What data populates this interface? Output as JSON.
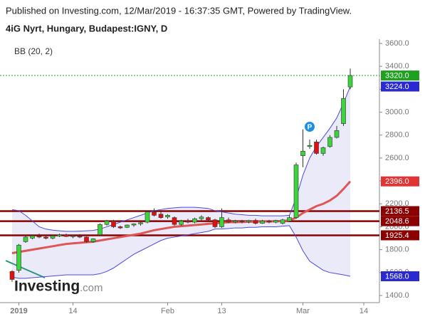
{
  "header": {
    "published": "Published on Investing.com, 12/Mar/2019 - 16:37:35 GMT, Powered by TradingView.",
    "symbol": "4iG Nyrt, Hungary, Budapest:IGNY, D",
    "indicator": "BB (20, 2)"
  },
  "logo": [
    "Investing",
    ".com"
  ],
  "chart_data": {
    "type": "candlestick",
    "categories": [
      null,
      "2019",
      null,
      null,
      null,
      null,
      null,
      null,
      null,
      "14",
      null,
      null,
      null,
      null,
      null,
      null,
      null,
      null,
      null,
      null,
      null,
      null,
      null,
      "Feb",
      null,
      null,
      null,
      null,
      null,
      null,
      null,
      "13",
      null,
      null,
      null,
      null,
      null,
      null,
      null,
      null,
      null,
      null,
      null,
      "Mar",
      null,
      null,
      null,
      null,
      null,
      null,
      null,
      null,
      "14"
    ],
    "open": [
      1610,
      1620,
      1870,
      1900,
      1920,
      1910,
      1900,
      1920,
      1930,
      1915,
      1920,
      1910,
      1870,
      1930,
      2020,
      2050,
      2000,
      1995,
      2015,
      2025,
      2040,
      2130,
      2110,
      2085,
      2080,
      2020,
      2050,
      2040,
      2070,
      2080,
      2060,
      2000,
      2060,
      2040,
      2050,
      2045,
      2055,
      2030,
      2050,
      2040,
      2030,
      2050,
      2080,
      2620,
      2700,
      2740,
      2640,
      2700,
      2780,
      2900,
      3220,
      null,
      null
    ],
    "high": [
      1620,
      1850,
      1920,
      1930,
      1940,
      1930,
      1930,
      1940,
      1940,
      1930,
      1935,
      1915,
      1900,
      2030,
      2060,
      2060,
      2010,
      2020,
      2030,
      2040,
      2140,
      2160,
      2130,
      2110,
      2090,
      2060,
      2070,
      2080,
      2100,
      2090,
      2070,
      2160,
      2080,
      2060,
      2060,
      2060,
      2070,
      2060,
      2060,
      2060,
      2070,
      2100,
      2560,
      2850,
      2760,
      2760,
      2700,
      2800,
      2880,
      3200,
      3380,
      null,
      null
    ],
    "low": [
      1520,
      1600,
      1860,
      1890,
      1900,
      1890,
      1890,
      1910,
      1910,
      1900,
      1900,
      1860,
      1860,
      1920,
      2010,
      1990,
      1980,
      1990,
      2000,
      2010,
      2030,
      2090,
      2070,
      2070,
      2010,
      2010,
      2030,
      2030,
      2050,
      2050,
      1990,
      1990,
      2030,
      2030,
      2030,
      2030,
      2020,
      2025,
      2030,
      2030,
      2020,
      2040,
      2070,
      2520,
      2680,
      2630,
      2620,
      2690,
      2770,
      2880,
      3200,
      null,
      null
    ],
    "close": [
      1540,
      1840,
      1910,
      1920,
      1910,
      1900,
      1920,
      1930,
      1915,
      1920,
      1910,
      1870,
      1895,
      2020,
      2050,
      2000,
      1990,
      2015,
      2025,
      2035,
      2130,
      2100,
      2080,
      2100,
      2020,
      2050,
      2040,
      2070,
      2085,
      2060,
      2000,
      2080,
      2040,
      2050,
      2045,
      2055,
      2030,
      2050,
      2040,
      2055,
      2060,
      2080,
      2540,
      2660,
      2710,
      2640,
      2690,
      2780,
      2840,
      3120,
      3320,
      null,
      null
    ],
    "up_color": "#3bd43b",
    "down_color": "#e01010",
    "bands": [
      {
        "name": "upper",
        "color": "#4a4ae0",
        "last_value_label": "3224.0",
        "values": [
          2150,
          2140,
          2100,
          2050,
          2000,
          1980,
          1970,
          1965,
          1960,
          1960,
          1962,
          1965,
          1968,
          1980,
          2000,
          2020,
          2040,
          2060,
          2080,
          2100,
          2120,
          2140,
          2150,
          2160,
          2165,
          2170,
          2170,
          2170,
          2165,
          2160,
          2140,
          2130,
          2120,
          2110,
          2105,
          2100,
          2100,
          2095,
          2095,
          2095,
          2095,
          2100,
          2250,
          2450,
          2600,
          2700,
          2780,
          2860,
          2950,
          3080,
          3224,
          null,
          null
        ]
      },
      {
        "name": "middle",
        "color": "#e05555",
        "last_value_label": "2396.0",
        "values": [
          1770,
          1780,
          1790,
          1800,
          1810,
          1820,
          1830,
          1840,
          1850,
          1855,
          1860,
          1865,
          1870,
          1880,
          1890,
          1900,
          1910,
          1920,
          1930,
          1940,
          1955,
          1970,
          1980,
          1990,
          2000,
          2005,
          2010,
          2015,
          2020,
          2025,
          2030,
          2035,
          2040,
          2040,
          2042,
          2044,
          2045,
          2046,
          2047,
          2048,
          2050,
          2055,
          2080,
          2120,
          2150,
          2180,
          2200,
          2230,
          2270,
          2330,
          2396,
          null,
          null
        ]
      },
      {
        "name": "lower",
        "color": "#4a4ae0",
        "last_value_label": "1568.0",
        "values": [
          1560,
          1550,
          1550,
          1555,
          1560,
          1565,
          1570,
          1575,
          1580,
          1580,
          1580,
          1580,
          1580,
          1590,
          1610,
          1640,
          1680,
          1720,
          1760,
          1790,
          1820,
          1850,
          1880,
          1900,
          1910,
          1920,
          1930,
          1940,
          1950,
          1960,
          1980,
          1980,
          1985,
          1990,
          1990,
          1995,
          1995,
          2000,
          2000,
          2000,
          2005,
          2010,
          1910,
          1790,
          1700,
          1660,
          1620,
          1600,
          1590,
          1580,
          1568,
          null,
          null
        ]
      }
    ],
    "band_fill": "rgba(140,140,215,0.18)",
    "box_colors": {
      "upper": "#2a2ad0",
      "middle": "#e03535",
      "lower": "#2a2ad0"
    },
    "last_price": {
      "value": 3320,
      "label": "3320.0",
      "color": "#1fa01f"
    },
    "levels": [
      2136.5,
      2048.6,
      1925.4
    ],
    "level_color": "#8b0000",
    "annotations": [
      {
        "text": "P",
        "color": "#1e90e0"
      }
    ],
    "ylim": [
      1400,
      3600
    ],
    "yticks": [
      {
        "value": 1400,
        "label": "1400.0"
      },
      {
        "value": 1600,
        "label": "1600.0"
      },
      {
        "value": 1800,
        "label": "1800.0"
      },
      {
        "value": 2000,
        "label": "2000.0"
      },
      {
        "value": 2200,
        "label": "2200.0"
      },
      {
        "value": 2400,
        "label": "2400.0"
      },
      {
        "value": 2600,
        "label": "2600.0"
      },
      {
        "value": 2800,
        "label": "2800.0"
      },
      {
        "value": 3000,
        "label": "3000.0"
      },
      {
        "value": 3200,
        "label": "3200.0"
      },
      {
        "value": 3400,
        "label": "3400.0"
      },
      {
        "value": 3600,
        "label": "3600.0"
      }
    ],
    "grid": false
  }
}
